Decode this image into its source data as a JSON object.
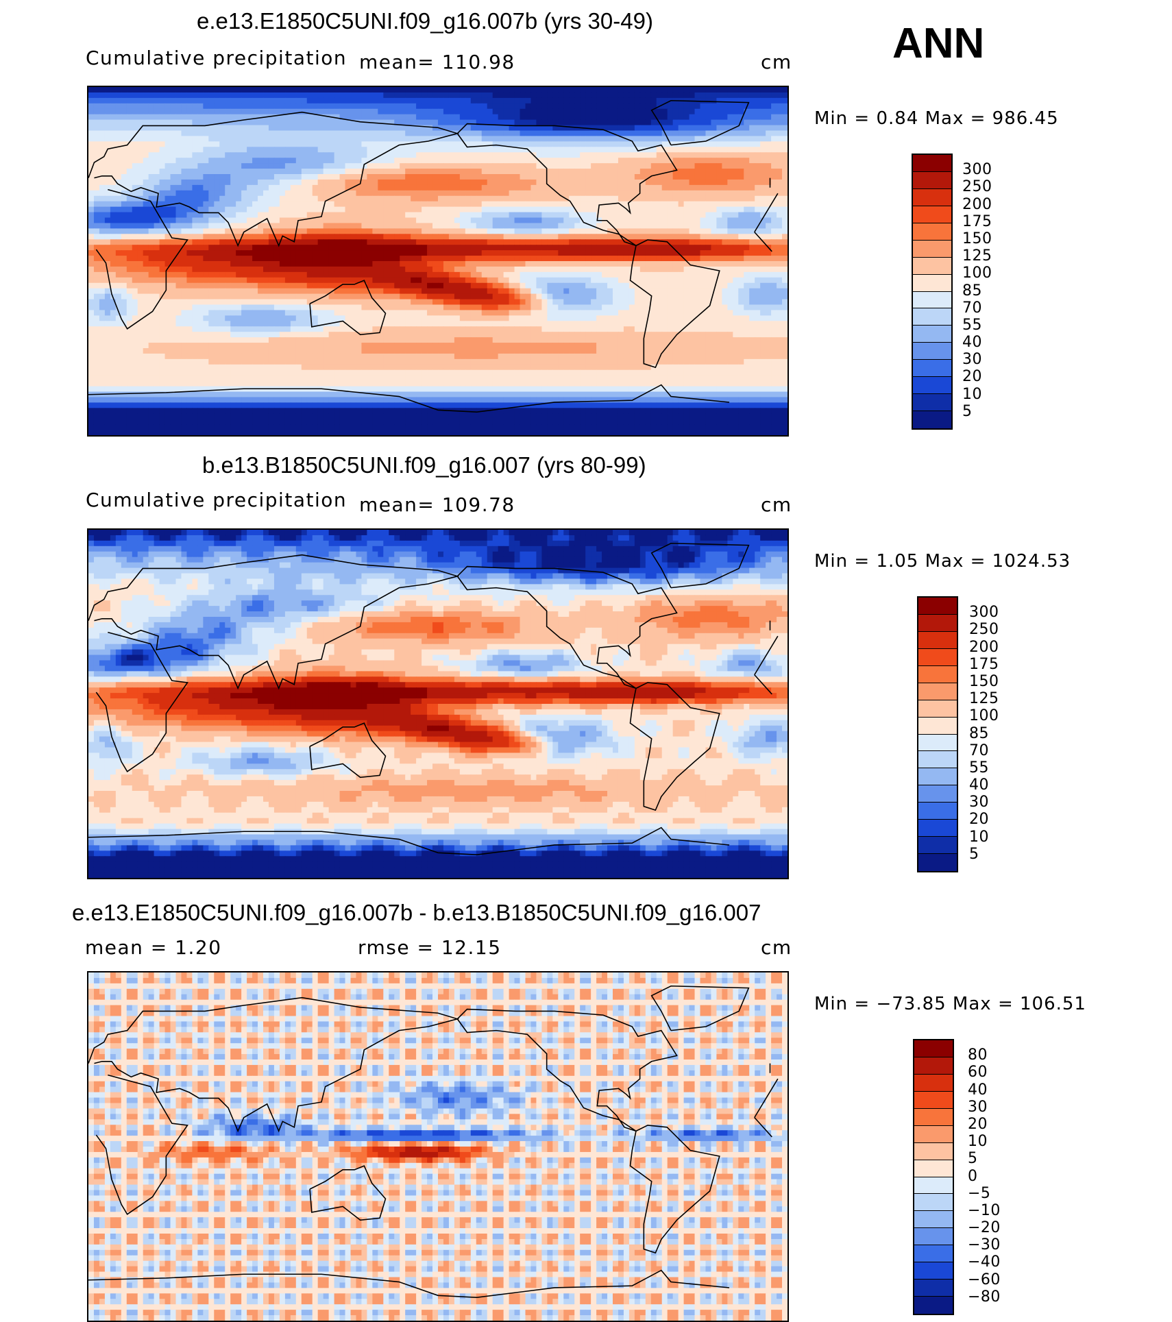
{
  "season": "ANN",
  "units": "cm",
  "panels": [
    {
      "title": "e.e13.E1850C5UNI.f09_g16.007b (yrs 30-49)",
      "left_label": "Cumulative  precipitation",
      "mean_text": "mean=  110.98",
      "units": "cm",
      "minmax": "Min  =     0.84  Max  =  986.45",
      "field": "model1"
    },
    {
      "title": "b.e13.B1850C5UNI.f09_g16.007 (yrs 80-99)",
      "left_label": "Cumulative  precipitation",
      "mean_text": "mean=  109.78",
      "units": "cm",
      "minmax": "Min  =     1.05  Max  =  1024.53",
      "field": "model2"
    },
    {
      "title": "e.e13.E1850C5UNI.f09_g16.007b - b.e13.B1850C5UNI.f09_g16.007",
      "mean_text": "mean  =      1.20",
      "rmse_text": "rmse  =     12.15",
      "units": "cm",
      "minmax": "Min  =  −73.85  Max  =  106.51",
      "field": "diff"
    }
  ],
  "colorbars": {
    "precip": {
      "labels": [
        "300",
        "250",
        "200",
        "175",
        "150",
        "125",
        "100",
        "85",
        "70",
        "55",
        "40",
        "30",
        "20",
        "10",
        "5"
      ],
      "colors": [
        "#8b0000",
        "#b3180a",
        "#d8300e",
        "#f04b1b",
        "#f8743b",
        "#fa9a6c",
        "#fdc3a2",
        "#fee6d5",
        "#dcebfa",
        "#bcd6f7",
        "#94b8f2",
        "#6793ec",
        "#3a6ee7",
        "#1a48d6",
        "#0f2ea8",
        "#0a1a85"
      ]
    },
    "diff": {
      "labels": [
        "80",
        "60",
        "40",
        "30",
        "20",
        "10",
        "5",
        "0",
        "−5",
        "−10",
        "−20",
        "−30",
        "−40",
        "−60",
        "−80"
      ],
      "colors": [
        "#8b0000",
        "#b3180a",
        "#d8300e",
        "#f04b1b",
        "#f8743b",
        "#fa9a6c",
        "#fdc3a2",
        "#fee6d5",
        "#dcebfa",
        "#bcd6f7",
        "#94b8f2",
        "#6793ec",
        "#3a6ee7",
        "#1a48d6",
        "#0f2ea8",
        "#0a1a85"
      ]
    }
  }
}
